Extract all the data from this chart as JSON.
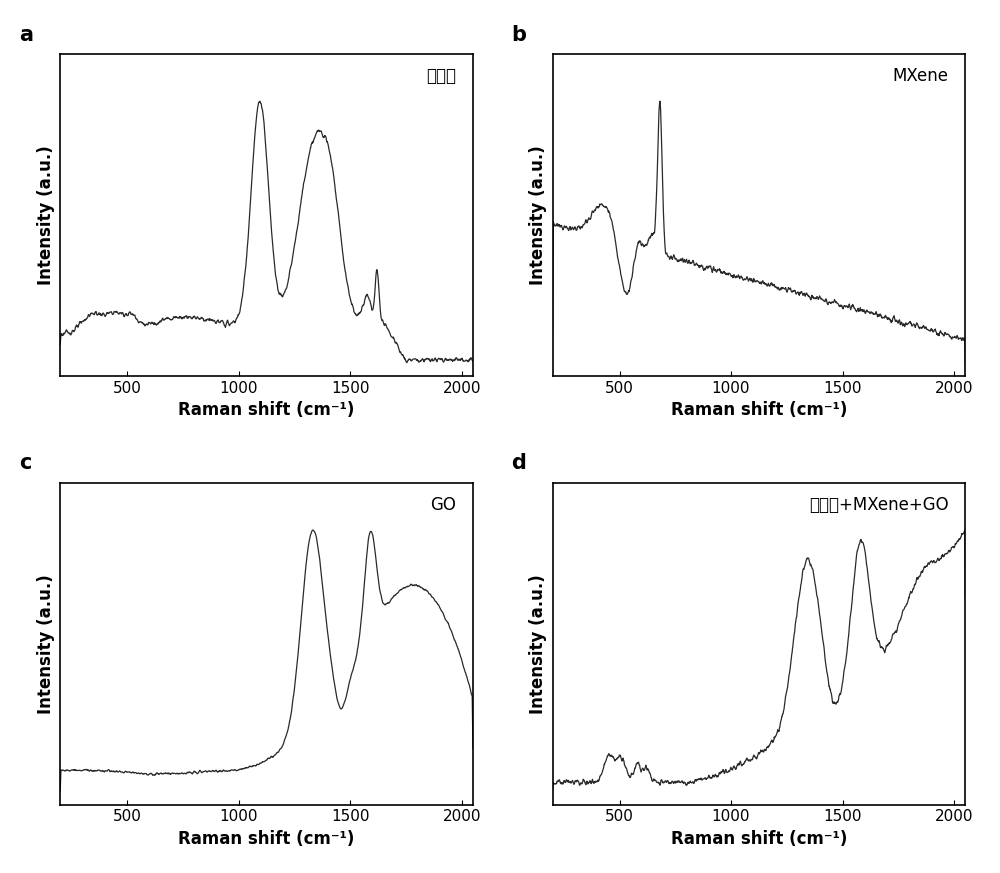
{
  "panel_labels": [
    "a",
    "b",
    "c",
    "d"
  ],
  "panel_annotations": [
    "生物质",
    "MXene",
    "GO",
    "生物质+MXene+GO"
  ],
  "xlabel": "Raman shift (cm⁻¹)",
  "ylabel": "Intensity (a.u.)",
  "xlim": [
    200,
    2050
  ],
  "line_color": "#2a2a2a",
  "line_width": 0.9,
  "background_color": "#ffffff",
  "panel_label_fontsize": 15,
  "annotation_fontsize": 12,
  "axis_label_fontsize": 12,
  "tick_fontsize": 11,
  "xticks": [
    500,
    1000,
    1500,
    2000
  ]
}
